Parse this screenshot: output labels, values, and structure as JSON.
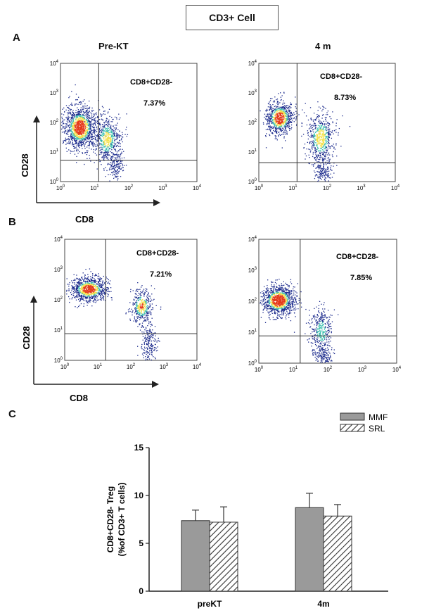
{
  "title": "CD3+ Cell",
  "panels": {
    "A": {
      "label": "A",
      "left_title": "Pre-KT",
      "right_title": "4 m",
      "xaxis": "CD8",
      "yaxis": "CD28",
      "gate_label": "CD8+CD28-",
      "left_pct": "7.37%",
      "right_pct": "8.73%"
    },
    "B": {
      "label": "B",
      "xaxis": "CD8",
      "yaxis": "CD28",
      "gate_label": "CD8+CD28-",
      "left_pct": "7.21%",
      "right_pct": "7.85%"
    },
    "C": {
      "label": "C"
    }
  },
  "log_ticks": {
    "base": "10",
    "exponents": [
      "0",
      "1",
      "2",
      "3",
      "4"
    ]
  },
  "colors": {
    "mmf": "#9a9a9a",
    "density_low": "#1b2a8c",
    "density_mid": "#3fc0b0",
    "density_high": "#f4e04a",
    "density_peak": "#e53a1a"
  },
  "chart_data": {
    "type": "bar",
    "categories": [
      "preKT",
      "4m"
    ],
    "series": [
      {
        "name": "MMF",
        "values": [
          7.37,
          8.73
        ],
        "errors": [
          1.1,
          1.5
        ]
      },
      {
        "name": "SRL",
        "values": [
          7.21,
          7.85
        ],
        "errors": [
          1.6,
          1.2
        ]
      }
    ],
    "ylabel": "CD8+CD28- Treg (%of CD3+ T cells)",
    "ylabel_line1": "CD8+CD28- Treg",
    "ylabel_line2": "(%of CD3+ T cells)",
    "ylim": [
      0,
      15
    ],
    "yticks": [
      "0",
      "5",
      "10",
      "15"
    ],
    "legend_position": "top-right",
    "grid": false
  }
}
